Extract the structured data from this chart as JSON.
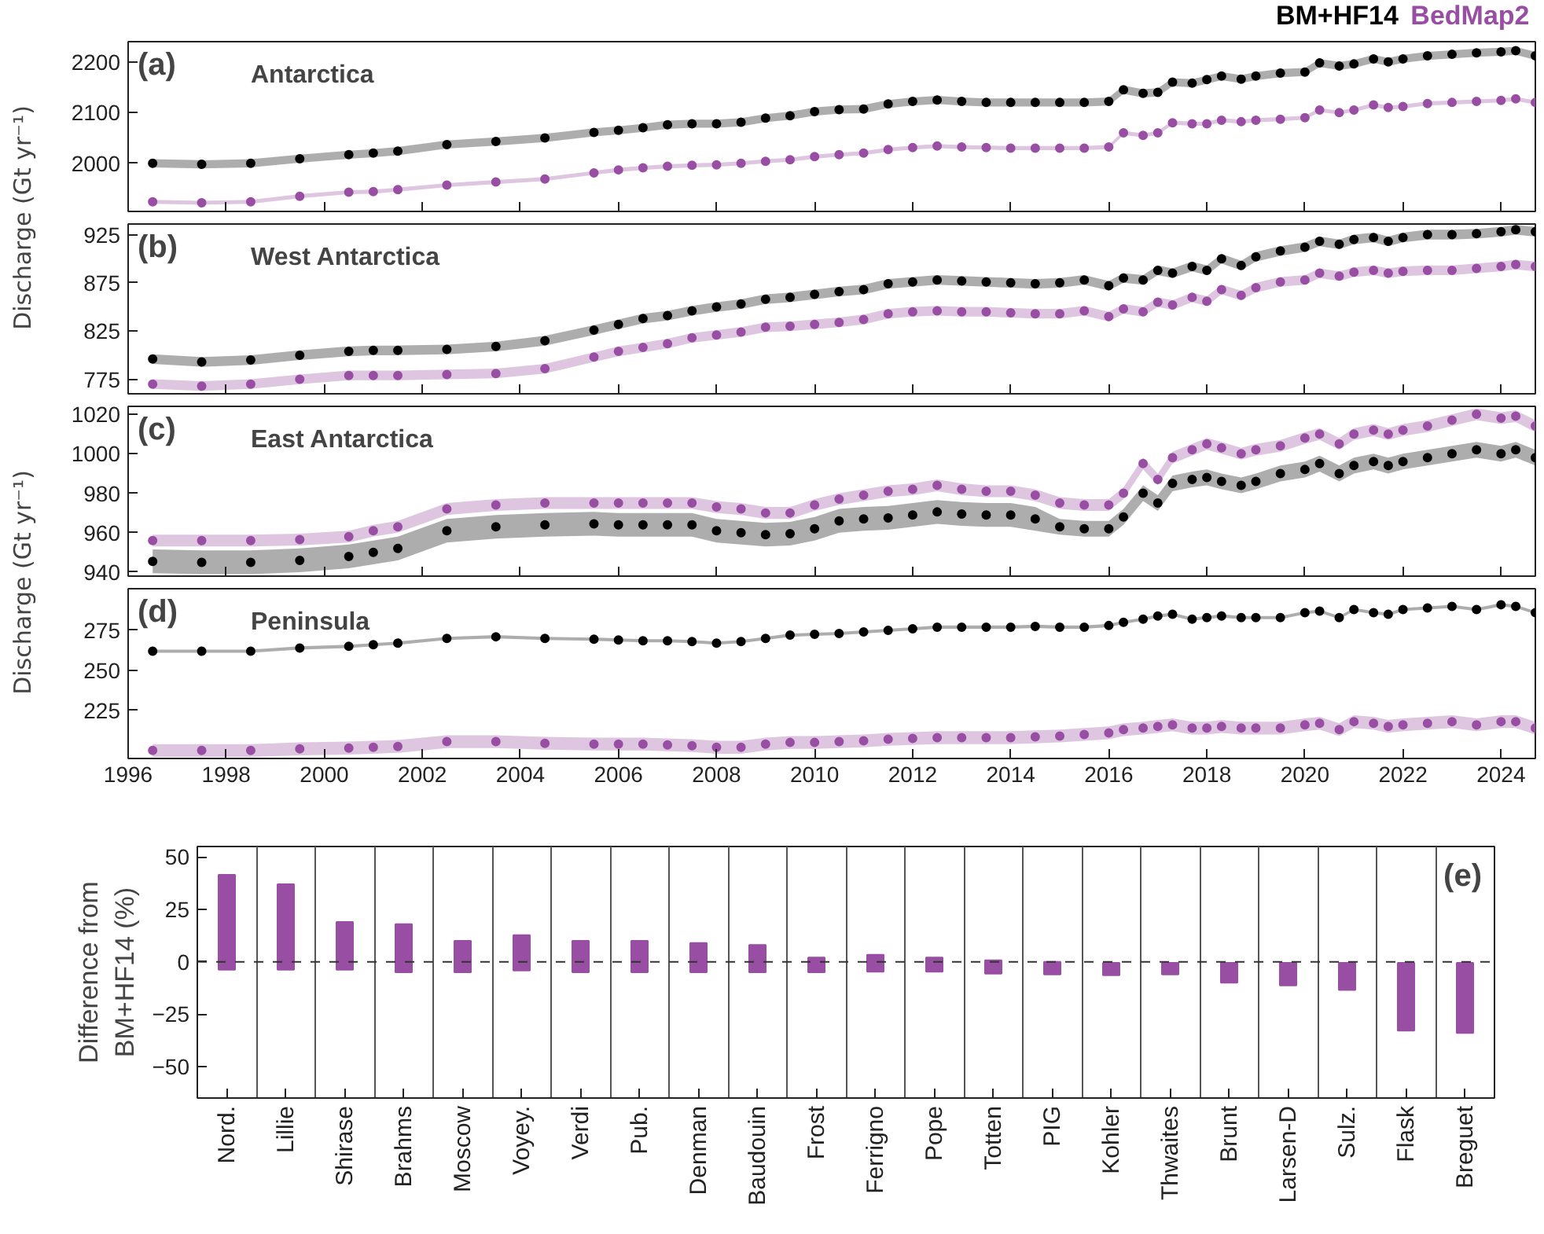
{
  "chart_data": [
    {
      "type": "scatter",
      "annotations": [
        "(a)",
        "Antarctica"
      ],
      "ylabel": "Discharge (Gt yr⁻¹)",
      "marker": "circle",
      "tick_labels": "y",
      "xlim": [
        1996,
        2024.7
      ],
      "xticks": [
        1996,
        1998,
        2000,
        2002,
        2004,
        2006,
        2008,
        2010,
        2012,
        2014,
        2016,
        2018,
        2020,
        2022,
        2024
      ],
      "ylim": [
        1905,
        2240
      ],
      "yticks": [
        2000,
        2100,
        2200
      ],
      "x": [
        1996.5,
        1997.5,
        1998.5,
        1999.5,
        2000.5,
        2001,
        2001.5,
        2002.5,
        2003.5,
        2004.5,
        2005.5,
        2006,
        2006.5,
        2007,
        2007.5,
        2008,
        2008.5,
        2009,
        2009.5,
        2010,
        2010.5,
        2011,
        2011.5,
        2012,
        2012.5,
        2013,
        2013.5,
        2014,
        2014.5,
        2015,
        2015.5,
        2016,
        2016.3,
        2016.7,
        2017,
        2017.3,
        2017.7,
        2018,
        2018.3,
        2018.7,
        2019,
        2019.5,
        2020,
        2020.3,
        2020.7,
        2021,
        2021.4,
        2021.7,
        2022,
        2022.5,
        2023,
        2023.5,
        2024,
        2024.3,
        2024.7
      ],
      "series": [
        {
          "name": "BM+HF14",
          "color": "#000000",
          "values": [
            2000,
            1998,
            2000,
            2009,
            2017,
            2020,
            2024,
            2037,
            2043,
            2050,
            2061,
            2065,
            2070,
            2076,
            2078,
            2078,
            2081,
            2089,
            2094,
            2102,
            2106,
            2107,
            2117,
            2122,
            2125,
            2122,
            2120,
            2120,
            2120,
            2120,
            2120,
            2122,
            2145,
            2138,
            2140,
            2160,
            2158,
            2165,
            2172,
            2166,
            2172,
            2178,
            2180,
            2198,
            2192,
            2196,
            2206,
            2200,
            2206,
            2212,
            2215,
            2218,
            2220,
            2222,
            2212
          ],
          "lower": [
            1992,
            1990,
            1992,
            2001,
            2009,
            2012,
            2016,
            2029,
            2035,
            2042,
            2053,
            2057,
            2062,
            2068,
            2070,
            2070,
            2073,
            2081,
            2086,
            2094,
            2098,
            2099,
            2109,
            2114,
            2117,
            2114,
            2112,
            2112,
            2112,
            2112,
            2112,
            2114,
            2137,
            2130,
            2132,
            2152,
            2150,
            2157,
            2164,
            2158,
            2164,
            2170,
            2172,
            2190,
            2184,
            2188,
            2198,
            2192,
            2198,
            2204,
            2207,
            2210,
            2212,
            2214,
            2204
          ],
          "upper": [
            2008,
            2006,
            2008,
            2017,
            2025,
            2028,
            2032,
            2045,
            2051,
            2058,
            2069,
            2073,
            2078,
            2084,
            2086,
            2086,
            2089,
            2097,
            2102,
            2110,
            2114,
            2115,
            2125,
            2130,
            2133,
            2130,
            2128,
            2128,
            2128,
            2128,
            2128,
            2130,
            2153,
            2146,
            2148,
            2168,
            2166,
            2173,
            2180,
            2174,
            2180,
            2186,
            2188,
            2206,
            2200,
            2204,
            2214,
            2208,
            2214,
            2220,
            2223,
            2226,
            2228,
            2230,
            2220
          ]
        },
        {
          "name": "BedMap2",
          "color": "#984ea3",
          "values": [
            1924,
            1922,
            1924,
            1935,
            1943,
            1944,
            1948,
            1957,
            1963,
            1969,
            1981,
            1987,
            1991,
            1994,
            1996,
            1997,
            2000,
            2004,
            2007,
            2013,
            2017,
            2020,
            2027,
            2031,
            2034,
            2032,
            2031,
            2030,
            2030,
            2030,
            2030,
            2032,
            2060,
            2055,
            2060,
            2080,
            2078,
            2078,
            2085,
            2082,
            2085,
            2087,
            2090,
            2105,
            2100,
            2105,
            2115,
            2110,
            2112,
            2118,
            2120,
            2122,
            2124,
            2127,
            2120
          ],
          "lower": [
            1920,
            1918,
            1920,
            1931,
            1939,
            1940,
            1944,
            1953,
            1959,
            1965,
            1977,
            1983,
            1987,
            1990,
            1992,
            1993,
            1996,
            2000,
            2003,
            2009,
            2013,
            2016,
            2023,
            2027,
            2030,
            2028,
            2027,
            2026,
            2026,
            2026,
            2026,
            2028,
            2056,
            2051,
            2056,
            2076,
            2074,
            2074,
            2081,
            2078,
            2081,
            2083,
            2086,
            2101,
            2096,
            2101,
            2111,
            2106,
            2108,
            2114,
            2116,
            2118,
            2120,
            2123,
            2116
          ],
          "upper": [
            1928,
            1926,
            1928,
            1939,
            1947,
            1948,
            1952,
            1961,
            1967,
            1973,
            1985,
            1991,
            1995,
            1998,
            2000,
            2001,
            2004,
            2008,
            2011,
            2017,
            2021,
            2024,
            2031,
            2035,
            2038,
            2036,
            2035,
            2034,
            2034,
            2034,
            2034,
            2036,
            2064,
            2059,
            2064,
            2084,
            2082,
            2082,
            2089,
            2086,
            2089,
            2091,
            2094,
            2109,
            2104,
            2109,
            2119,
            2114,
            2116,
            2122,
            2124,
            2126,
            2128,
            2131,
            2124
          ]
        }
      ]
    },
    {
      "type": "scatter",
      "annotations": [
        "(b)",
        "West Antarctica"
      ],
      "marker": "circle",
      "tick_labels": "y",
      "xlim": [
        1996,
        2024.7
      ],
      "xticks": [
        1996,
        1998,
        2000,
        2002,
        2004,
        2006,
        2008,
        2010,
        2012,
        2014,
        2016,
        2018,
        2020,
        2022,
        2024
      ],
      "ylim": [
        760,
        936
      ],
      "yticks": [
        775,
        825,
        875,
        925
      ],
      "x": [
        1996.5,
        1997.5,
        1998.5,
        1999.5,
        2000.5,
        2001,
        2001.5,
        2002.5,
        2003.5,
        2004.5,
        2005.5,
        2006,
        2006.5,
        2007,
        2007.5,
        2008,
        2008.5,
        2009,
        2009.5,
        2010,
        2010.5,
        2011,
        2011.5,
        2012,
        2012.5,
        2013,
        2013.5,
        2014,
        2014.5,
        2015,
        2015.5,
        2016,
        2016.3,
        2016.7,
        2017,
        2017.3,
        2017.7,
        2018,
        2018.3,
        2018.7,
        2019,
        2019.5,
        2020,
        2020.3,
        2020.7,
        2021,
        2021.4,
        2021.7,
        2022,
        2022.5,
        2023,
        2023.5,
        2024,
        2024.3,
        2024.7
      ],
      "series": [
        {
          "color": "#000000",
          "values": [
            796,
            793,
            795,
            800,
            804,
            805,
            805,
            806,
            809,
            815,
            826,
            832,
            838,
            841,
            846,
            850,
            853,
            858,
            860,
            863,
            866,
            868,
            874,
            876,
            878,
            877,
            876,
            875,
            874,
            875,
            878,
            872,
            880,
            878,
            888,
            885,
            892,
            888,
            900,
            893,
            902,
            908,
            912,
            918,
            915,
            920,
            922,
            918,
            922,
            925,
            925,
            926,
            928,
            930,
            928
          ],
          "lower": [
            791,
            788,
            790,
            795,
            799,
            800,
            800,
            801,
            804,
            810,
            821,
            827,
            833,
            836,
            841,
            845,
            848,
            853,
            855,
            858,
            861,
            863,
            869,
            871,
            873,
            872,
            871,
            870,
            869,
            870,
            873,
            867,
            875,
            873,
            883,
            880,
            887,
            883,
            895,
            888,
            897,
            903,
            907,
            913,
            910,
            915,
            917,
            913,
            917,
            920,
            920,
            921,
            923,
            925,
            923
          ],
          "upper": [
            801,
            798,
            800,
            805,
            809,
            810,
            810,
            811,
            814,
            820,
            831,
            837,
            843,
            846,
            851,
            855,
            858,
            863,
            865,
            868,
            871,
            873,
            879,
            881,
            883,
            882,
            881,
            880,
            879,
            880,
            883,
            877,
            885,
            883,
            893,
            890,
            897,
            893,
            905,
            898,
            907,
            913,
            917,
            923,
            920,
            925,
            927,
            923,
            927,
            930,
            930,
            931,
            933,
            935,
            933
          ]
        },
        {
          "color": "#984ea3",
          "values": [
            770,
            768,
            770,
            775,
            779,
            779,
            779,
            780,
            781,
            786,
            798,
            804,
            808,
            812,
            818,
            821,
            824,
            829,
            830,
            832,
            834,
            837,
            843,
            845,
            846,
            845,
            845,
            844,
            843,
            843,
            846,
            840,
            848,
            845,
            855,
            852,
            860,
            856,
            868,
            862,
            870,
            876,
            878,
            885,
            882,
            886,
            888,
            885,
            887,
            888,
            888,
            890,
            892,
            894,
            892
          ],
          "lower": [
            765,
            763,
            765,
            770,
            774,
            774,
            774,
            775,
            776,
            781,
            793,
            799,
            803,
            807,
            813,
            816,
            819,
            824,
            825,
            827,
            829,
            832,
            838,
            840,
            841,
            840,
            840,
            839,
            838,
            838,
            841,
            835,
            843,
            840,
            850,
            847,
            855,
            851,
            863,
            857,
            865,
            871,
            873,
            880,
            877,
            881,
            883,
            880,
            882,
            883,
            883,
            885,
            887,
            889,
            887
          ],
          "upper": [
            775,
            773,
            775,
            780,
            784,
            784,
            784,
            785,
            786,
            791,
            803,
            809,
            813,
            817,
            823,
            826,
            829,
            834,
            835,
            837,
            839,
            842,
            848,
            850,
            851,
            850,
            850,
            849,
            848,
            848,
            851,
            845,
            853,
            850,
            860,
            857,
            865,
            861,
            873,
            867,
            875,
            881,
            883,
            890,
            887,
            891,
            893,
            890,
            892,
            893,
            893,
            895,
            897,
            899,
            897
          ]
        }
      ]
    },
    {
      "type": "scatter",
      "annotations": [
        "(c)",
        "East Antarctica"
      ],
      "ylabel": "Discharge (Gt yr⁻¹)",
      "marker": "circle",
      "tick_labels": "y",
      "xlim": [
        1996,
        2024.7
      ],
      "xticks": [
        1996,
        1998,
        2000,
        2002,
        2004,
        2006,
        2008,
        2010,
        2012,
        2014,
        2016,
        2018,
        2020,
        2022,
        2024
      ],
      "ylim": [
        938,
        1024
      ],
      "yticks": [
        940,
        960,
        980,
        1000,
        1020
      ],
      "x": [
        1996.5,
        1997.5,
        1998.5,
        1999.5,
        2000.5,
        2001,
        2001.5,
        2002.5,
        2003.5,
        2004.5,
        2005.5,
        2006,
        2006.5,
        2007,
        2007.5,
        2008,
        2008.5,
        2009,
        2009.5,
        2010,
        2010.5,
        2011,
        2011.5,
        2012,
        2012.5,
        2013,
        2013.5,
        2014,
        2014.5,
        2015,
        2015.5,
        2016,
        2016.3,
        2016.7,
        2017,
        2017.3,
        2017.7,
        2018,
        2018.3,
        2018.7,
        2019,
        2019.5,
        2020,
        2020.3,
        2020.7,
        2021,
        2021.4,
        2021.7,
        2022,
        2022.5,
        2023,
        2023.5,
        2024,
        2024.3,
        2024.7
      ],
      "series": [
        {
          "color": "#000000",
          "values": [
            945.5,
            945,
            945,
            946,
            948,
            950,
            952,
            961,
            963,
            964,
            964.5,
            964,
            964,
            964,
            964,
            961,
            960,
            959,
            959.5,
            962,
            966,
            967,
            967.5,
            969,
            970.5,
            969.5,
            969,
            969,
            967,
            963,
            962,
            962,
            968,
            980,
            975,
            985,
            987,
            988,
            986,
            984,
            986,
            990,
            992,
            995,
            990,
            994,
            996,
            994,
            996,
            998,
            1000,
            1002,
            1000,
            1002,
            998
          ],
          "lower": [
            939.5,
            939,
            939,
            940,
            942,
            944,
            946,
            955,
            957,
            958,
            958.5,
            958,
            958,
            958,
            958,
            955,
            954,
            953,
            953.5,
            956,
            960,
            961,
            961.5,
            963,
            964.5,
            963.5,
            963,
            963,
            961,
            959,
            958,
            958,
            964,
            976,
            971,
            981,
            983,
            984,
            982,
            980,
            982,
            986,
            988,
            991,
            986,
            990,
            992,
            990,
            992,
            994,
            996,
            998,
            996,
            998,
            994
          ],
          "upper": [
            951.5,
            951,
            951,
            952,
            954,
            956,
            958,
            967,
            969,
            970,
            970.5,
            970,
            970,
            970,
            970,
            967,
            966,
            965,
            965.5,
            968,
            972,
            973,
            973.5,
            975,
            976.5,
            975.5,
            975,
            975,
            973,
            967,
            966,
            966,
            972,
            984,
            979,
            989,
            991,
            992,
            990,
            988,
            990,
            994,
            996,
            999,
            994,
            998,
            1000,
            998,
            1000,
            1002,
            1004,
            1006,
            1004,
            1006,
            1002
          ]
        },
        {
          "color": "#984ea3",
          "values": [
            956,
            956,
            956,
            956.5,
            958,
            961,
            963,
            972,
            974,
            975,
            975,
            975,
            975,
            975,
            975,
            973,
            972,
            970,
            970,
            974,
            977,
            979,
            981,
            982,
            984,
            982,
            981,
            981,
            979,
            975,
            974,
            974,
            980,
            995,
            987,
            998,
            1002,
            1005,
            1003,
            1000,
            1002,
            1004,
            1008,
            1010,
            1005,
            1010,
            1012,
            1010,
            1012,
            1014,
            1017,
            1020,
            1018,
            1019,
            1014
          ],
          "lower": [
            953,
            953,
            953,
            953.5,
            955,
            958,
            960,
            969,
            971,
            972,
            972,
            972,
            972,
            972,
            972,
            970,
            969,
            967,
            967,
            971,
            974,
            976,
            978,
            979,
            981,
            979,
            978,
            978,
            976,
            972,
            971,
            971,
            977,
            992,
            984,
            995,
            999,
            1002,
            1000,
            997,
            999,
            1001,
            1005,
            1007,
            1002,
            1007,
            1009,
            1007,
            1009,
            1011,
            1014,
            1017,
            1015,
            1016,
            1011
          ],
          "upper": [
            959,
            959,
            959,
            959.5,
            961,
            964,
            966,
            975,
            977,
            978,
            978,
            978,
            978,
            978,
            978,
            976,
            975,
            973,
            973,
            977,
            980,
            982,
            984,
            985,
            987,
            985,
            984,
            984,
            982,
            978,
            977,
            977,
            983,
            998,
            990,
            1001,
            1005,
            1008,
            1006,
            1003,
            1005,
            1007,
            1011,
            1013,
            1008,
            1013,
            1015,
            1013,
            1015,
            1017,
            1020,
            1023,
            1021,
            1022,
            1017
          ]
        }
      ]
    },
    {
      "type": "scatter",
      "annotations": [
        "(d)",
        "Peninsula"
      ],
      "marker": "circle",
      "xlim": [
        1996,
        2024.7
      ],
      "xticks": [
        1996,
        1998,
        2000,
        2002,
        2004,
        2006,
        2008,
        2010,
        2012,
        2014,
        2016,
        2018,
        2020,
        2022,
        2024
      ],
      "ylim": [
        195,
        301
      ],
      "yticks": [
        225,
        250,
        275
      ],
      "x": [
        1996.5,
        1997.5,
        1998.5,
        1999.5,
        2000.5,
        2001,
        2001.5,
        2002.5,
        2003.5,
        2004.5,
        2005.5,
        2006,
        2006.5,
        2007,
        2007.5,
        2008,
        2008.5,
        2009,
        2009.5,
        2010,
        2010.5,
        2011,
        2011.5,
        2012,
        2012.5,
        2013,
        2013.5,
        2014,
        2014.5,
        2015,
        2015.5,
        2016,
        2016.3,
        2016.7,
        2017,
        2017.3,
        2017.7,
        2018,
        2018.3,
        2018.7,
        2019,
        2019.5,
        2020,
        2020.3,
        2020.7,
        2021,
        2021.4,
        2021.7,
        2022,
        2022.5,
        2023,
        2023.5,
        2024,
        2024.3,
        2024.7
      ],
      "series": [
        {
          "color": "#000000",
          "values": [
            262,
            262,
            262,
            264,
            265,
            266,
            267,
            270,
            271,
            270,
            269.5,
            269,
            268.5,
            268.5,
            268,
            267,
            268,
            270,
            272,
            272.5,
            273,
            274,
            275,
            276,
            277,
            277,
            277,
            277,
            277.5,
            277,
            277,
            278,
            280,
            282,
            284,
            285,
            282,
            283,
            284,
            283,
            283,
            283,
            286,
            287,
            283,
            288,
            286,
            285,
            288,
            289,
            290,
            288,
            291,
            290,
            286
          ],
          "lower": [
            261,
            261,
            261,
            263,
            264,
            265,
            266,
            269,
            270,
            269,
            268.5,
            268,
            267.5,
            267.5,
            267,
            266,
            267,
            269,
            271,
            271.5,
            272,
            273,
            274,
            275,
            276,
            276,
            276,
            276,
            276.5,
            276,
            276,
            277,
            279,
            281,
            283,
            284,
            281,
            282,
            283,
            282,
            282,
            282,
            285,
            286,
            282,
            287,
            285,
            284,
            287,
            288,
            289,
            287,
            290,
            289,
            285
          ],
          "upper": [
            263,
            263,
            263,
            265,
            266,
            267,
            268,
            271,
            272,
            271,
            270.5,
            270,
            269.5,
            269.5,
            269,
            268,
            269,
            271,
            273,
            273.5,
            274,
            275,
            276,
            277,
            278,
            278,
            278,
            278,
            278.5,
            278,
            278,
            279,
            281,
            283,
            285,
            286,
            283,
            284,
            285,
            284,
            284,
            284,
            287,
            288,
            284,
            289,
            287,
            286,
            289,
            290,
            291,
            289,
            292,
            291,
            287
          ]
        },
        {
          "color": "#984ea3",
          "values": [
            200,
            200,
            200,
            201,
            201.5,
            202,
            202.5,
            205.5,
            205.5,
            204.5,
            204,
            204,
            204,
            203.5,
            203,
            202,
            202,
            204,
            205,
            205,
            205.5,
            206,
            207,
            207.5,
            208,
            208,
            208,
            208,
            208.5,
            209,
            210,
            211,
            213,
            214,
            215,
            216,
            214,
            214,
            215,
            214,
            214,
            214,
            216,
            217,
            213,
            218,
            217,
            215,
            216,
            217,
            218,
            216,
            218,
            218,
            214
          ],
          "lower": [
            196,
            196,
            196,
            197,
            197.5,
            198,
            198.5,
            201.5,
            201.5,
            200.5,
            200,
            200,
            200,
            199.5,
            199,
            198,
            198,
            200,
            201,
            201,
            201.5,
            202,
            203,
            203.5,
            204,
            204,
            204,
            204,
            204.5,
            205,
            206,
            207,
            209,
            210,
            211,
            212,
            210,
            210,
            211,
            210,
            210,
            210,
            212,
            213,
            209,
            214,
            213,
            211,
            212,
            213,
            214,
            212,
            214,
            214,
            210
          ],
          "upper": [
            204,
            204,
            204,
            205,
            205.5,
            206,
            206.5,
            209.5,
            209.5,
            208.5,
            208,
            208,
            208,
            207.5,
            207,
            206,
            206,
            208,
            209,
            209,
            209.5,
            210,
            211,
            211.5,
            212,
            212,
            212,
            212,
            212.5,
            213,
            214,
            215,
            217,
            218,
            219,
            220,
            218,
            218,
            219,
            218,
            218,
            218,
            220,
            221,
            217,
            222,
            221,
            219,
            220,
            221,
            222,
            220,
            222,
            222,
            218
          ]
        }
      ]
    },
    {
      "type": "bar",
      "annotations": [
        "(e)"
      ],
      "ylabel": "Difference from BM+HF14 (%)",
      "grid": "x",
      "color": "#984ea3",
      "categories": [
        "Nord.",
        "Lillie",
        "Shirase",
        "Brahms",
        "Moscow",
        "Voyey.",
        "Verdi",
        "Pub.",
        "Denman",
        "Baudouin",
        "Frost",
        "Ferrigno",
        "Pope",
        "Totten",
        "PIG",
        "Kohler",
        "Thwaites",
        "Brunt",
        "Larsen-D",
        "Sulz.",
        "Flask",
        "Breguet"
      ],
      "base": [
        -3.8,
        -3.8,
        -3.8,
        -5,
        -5,
        -4.2,
        -5,
        -5,
        -5,
        -5,
        -5,
        -4.7,
        -4.7,
        -5.7,
        -6,
        -6.4,
        -6,
        -10,
        -11.3,
        -13.4,
        -32.8,
        -34
      ],
      "values": [
        45.3,
        40.8,
        22.8,
        23,
        15,
        16.9,
        15,
        15,
        14,
        13,
        7,
        8,
        6.7,
        6.4,
        6,
        5.9,
        5.5,
        9.5,
        10.8,
        12.9,
        32.3,
        33.5
      ],
      "ylim": [
        -65,
        55
      ],
      "yticks": [
        -50,
        -25,
        0,
        25,
        50
      ],
      "ref_lines": [
        {
          "axis": "y",
          "value": 0,
          "line_style": "dashed"
        }
      ]
    }
  ]
}
